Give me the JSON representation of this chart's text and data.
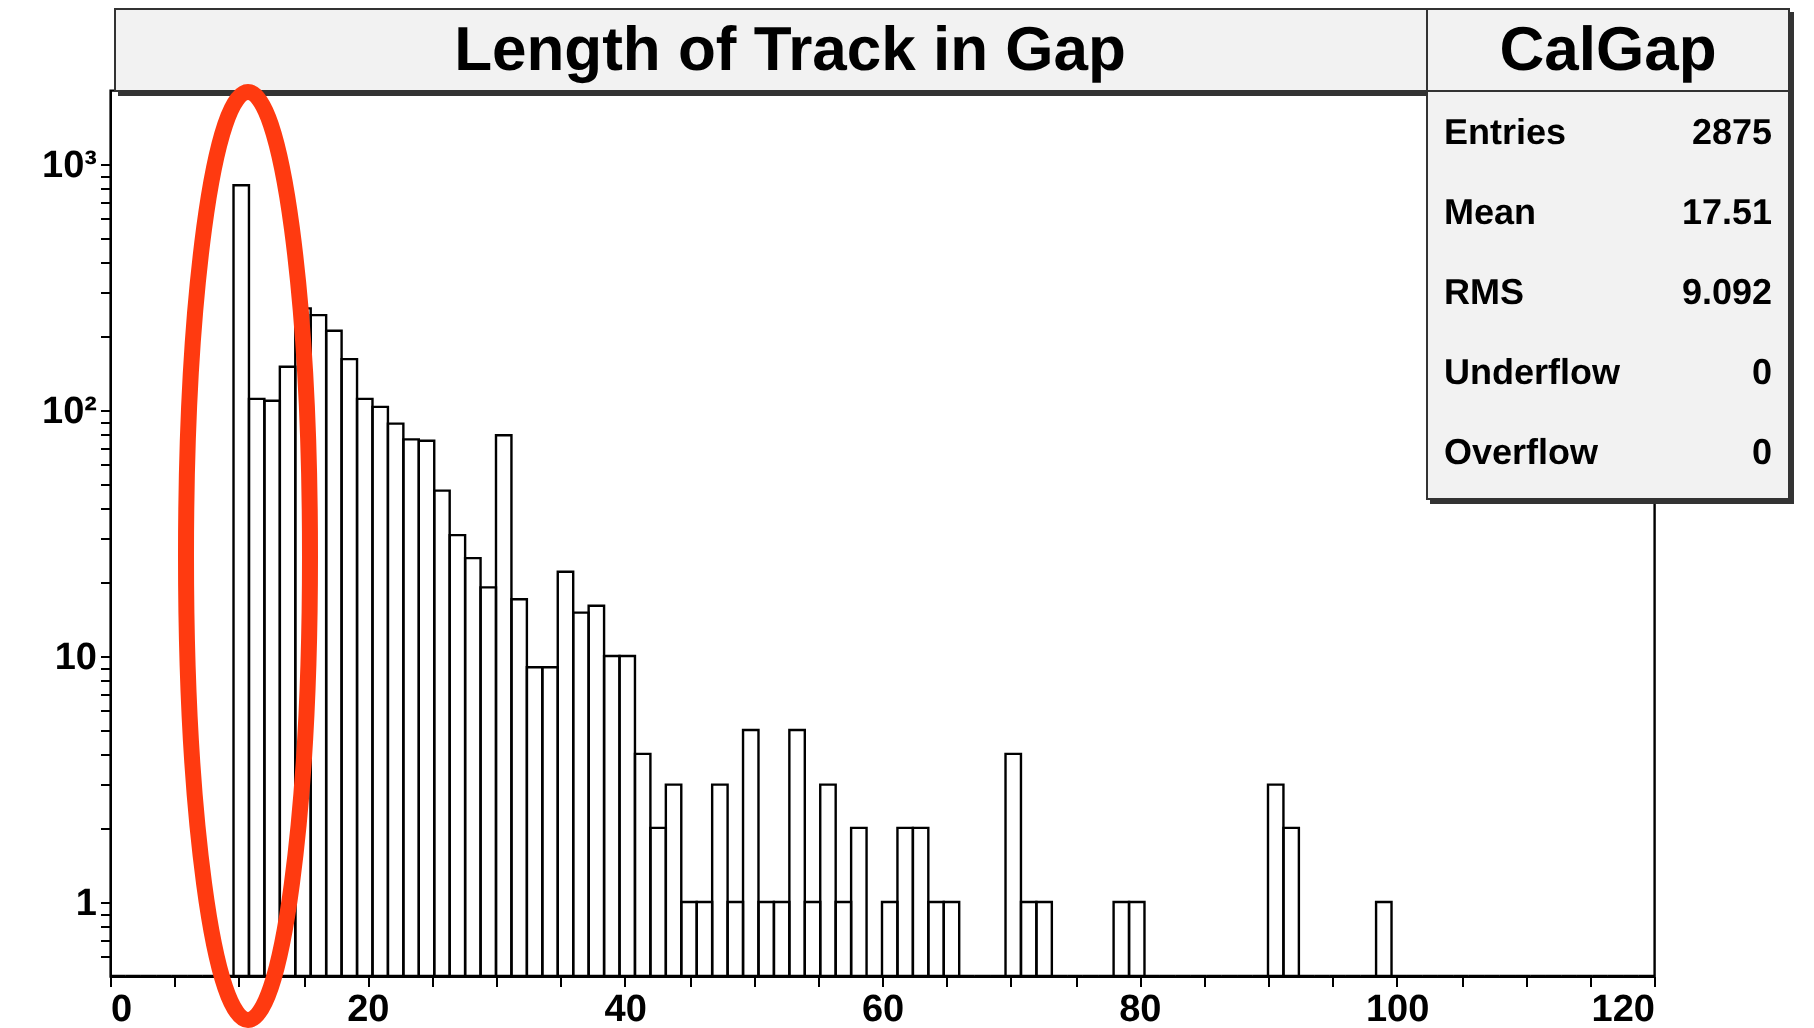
{
  "chart_data": {
    "type": "histogram",
    "title": "Length of Track in Gap",
    "annotations": [
      "CalGap",
      "Entries",
      "2875",
      "Mean",
      "17.51",
      "RMS",
      "9.092",
      "Underflow",
      "0",
      "Overflow",
      "0"
    ],
    "bins": [
      0,
      1.2,
      2.4,
      3.6,
      4.8,
      6,
      7.2,
      8.4,
      9.6,
      10.8,
      12,
      13.2,
      14.4,
      15.6,
      16.8,
      18,
      19.2,
      20.4,
      21.6,
      22.8,
      24,
      25.2,
      26.4,
      27.6,
      28.8,
      30,
      31.2,
      32.4,
      33.6,
      34.8,
      36,
      37.2,
      38.4,
      39.6,
      40.8,
      42,
      43.2,
      44.4,
      45.6,
      46.8,
      48,
      49.2,
      50.4,
      51.6,
      52.8,
      54,
      55.2,
      56.4,
      57.6,
      58.8,
      60,
      61.2,
      62.4,
      63.6,
      64.8,
      66,
      67.2,
      68.4,
      69.6,
      70.8,
      72,
      73.2,
      74.4,
      75.6,
      76.8,
      78,
      79.2,
      80.4,
      81.6,
      82.8,
      84,
      85.2,
      86.4,
      87.6,
      88.8,
      90,
      91.2,
      92.4,
      93.6,
      94.8,
      96,
      97.2,
      98.4,
      99.6,
      100.8,
      102,
      103.2,
      104.4,
      105.6,
      106.8,
      108,
      109.2,
      110.4,
      111.6,
      112.8,
      114,
      115.2,
      116.4,
      117.6,
      118.8,
      120
    ],
    "values": [
      null,
      null,
      null,
      null,
      null,
      null,
      null,
      null,
      820,
      111,
      109,
      150,
      259,
      243,
      210,
      161,
      111,
      103,
      88,
      76,
      75,
      47,
      31,
      25,
      19,
      79,
      17,
      9,
      9,
      22,
      15,
      16,
      10,
      10,
      4,
      2,
      3,
      1,
      1,
      3,
      1,
      5,
      1,
      1,
      5,
      1,
      3,
      1,
      2,
      null,
      1,
      2,
      2,
      1,
      1,
      null,
      null,
      null,
      4,
      1,
      1,
      null,
      null,
      null,
      null,
      1,
      1,
      null,
      null,
      null,
      null,
      null,
      null,
      null,
      null,
      3,
      2,
      null,
      null,
      null,
      null,
      null,
      1,
      null,
      null,
      null,
      null,
      null,
      null,
      null,
      null,
      null,
      null,
      null,
      null,
      null,
      null,
      null,
      null,
      null
    ],
    "color": "#000000",
    "log": true,
    "grid": false,
    "xlim": [
      0,
      120
    ],
    "xticks": [
      0,
      {
        "value": 5,
        "label": null
      },
      {
        "value": 10,
        "label": null
      },
      {
        "value": 15,
        "label": null
      },
      20,
      {
        "value": 25,
        "label": null
      },
      {
        "value": 30,
        "label": null
      },
      {
        "value": 35,
        "label": null
      },
      40,
      {
        "value": 45,
        "label": null
      },
      {
        "value": 50,
        "label": null
      },
      {
        "value": 55,
        "label": null
      },
      60,
      {
        "value": 65,
        "label": null
      },
      {
        "value": 70,
        "label": null
      },
      {
        "value": 75,
        "label": null
      },
      80,
      {
        "value": 85,
        "label": null
      },
      {
        "value": 90,
        "label": null
      },
      {
        "value": 95,
        "label": null
      },
      100,
      {
        "value": 105,
        "label": null
      },
      {
        "value": 110,
        "label": null
      },
      {
        "value": 115,
        "label": null
      },
      120
    ],
    "ylim": [
      0.5,
      2000
    ],
    "yticks": [
      {
        "value": 0.6,
        "label": null
      },
      {
        "value": 0.7,
        "label": null
      },
      {
        "value": 0.8,
        "label": null
      },
      {
        "value": 0.9,
        "label": null
      },
      1,
      {
        "value": 2,
        "label": null
      },
      {
        "value": 3,
        "label": null
      },
      {
        "value": 4,
        "label": null
      },
      {
        "value": 5,
        "label": null
      },
      {
        "value": 6,
        "label": null
      },
      {
        "value": 7,
        "label": null
      },
      {
        "value": 8,
        "label": null
      },
      {
        "value": 9,
        "label": null
      },
      10,
      {
        "value": 20,
        "label": null
      },
      {
        "value": 30,
        "label": null
      },
      {
        "value": 40,
        "label": null
      },
      {
        "value": 50,
        "label": null
      },
      {
        "value": 60,
        "label": null
      },
      {
        "value": 70,
        "label": null
      },
      {
        "value": 80,
        "label": null
      },
      {
        "value": 90,
        "label": null
      },
      {
        "value": 100,
        "label": "10²"
      },
      {
        "value": 200,
        "label": null
      },
      {
        "value": 300,
        "label": null
      },
      {
        "value": 400,
        "label": null
      },
      {
        "value": 500,
        "label": null
      },
      {
        "value": 600,
        "label": null
      },
      {
        "value": 700,
        "label": null
      },
      {
        "value": 800,
        "label": null
      },
      {
        "value": 900,
        "label": null
      },
      {
        "value": 1000,
        "label": "10³"
      }
    ]
  }
}
